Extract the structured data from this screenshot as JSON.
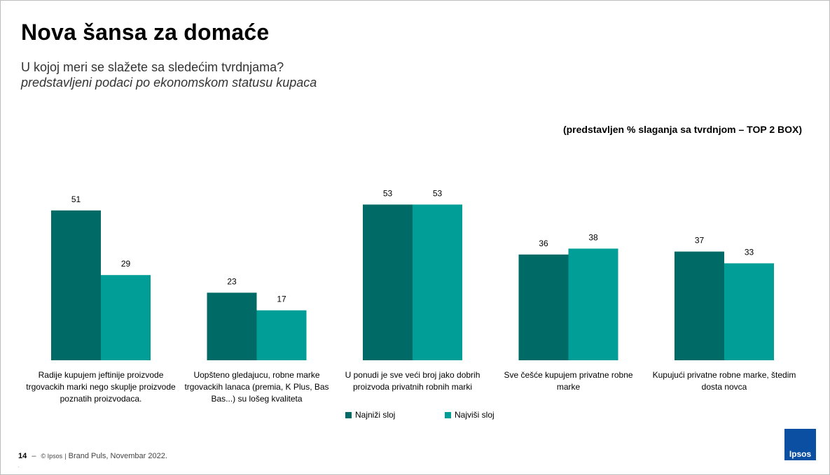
{
  "title": "Nova šansa za domaće",
  "subtitle": "U kojoj meri se slažete sa sledećim tvrdnjama?",
  "subtitle_italic": "predstavljeni podaci po ekonomskom statusu kupaca",
  "note": "(predstavljen % slaganja sa tvrdnjom – TOP 2 BOX)",
  "colors": {
    "series1": "#006b66",
    "series2": "#009e96"
  },
  "chart_data": {
    "type": "bar",
    "categories": [
      [
        "Radije kupujem jeftinije proizvode",
        "trgovackih marki nego skuplje proizvode",
        "poznatih proizvodaca."
      ],
      [
        "Uopšteno gledajucu, robne marke",
        "trgovackih lanaca (premia, K Plus, Bas",
        "Bas...) su lošeg kvaliteta"
      ],
      [
        "U ponudi je sve veći broj jako dobrih",
        "proizvoda privatnih robnih marki"
      ],
      [
        "Sve češće kupujem privatne robne",
        "marke"
      ],
      [
        "Kupujući privatne robne marke, štedim",
        "dosta novca"
      ]
    ],
    "series": [
      {
        "name": "Najniži sloj",
        "values": [
          51,
          23,
          53,
          36,
          37
        ]
      },
      {
        "name": "Najviši sloj",
        "values": [
          29,
          17,
          53,
          38,
          33
        ]
      }
    ],
    "ylim": [
      0,
      60
    ],
    "grid": false,
    "legend": "bottom"
  },
  "footer": {
    "page": "14",
    "dash": "–",
    "copyright": "© Ipsos",
    "bar": "|",
    "source": "Brand Puls, Novembar 2022."
  },
  "logo_text": "Ipsos",
  "dot": "."
}
